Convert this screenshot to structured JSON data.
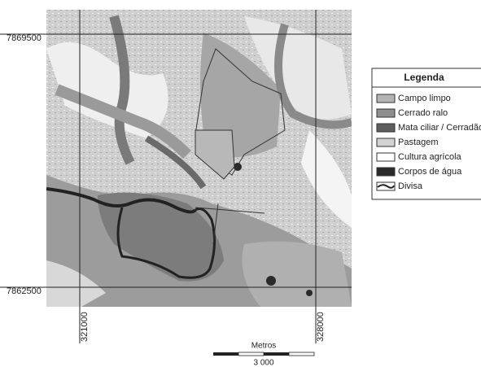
{
  "map": {
    "northings": [
      "7869500",
      "7862500"
    ],
    "eastings": [
      "321000",
      "328000"
    ],
    "legend": {
      "title": "Legenda",
      "items": [
        {
          "label": "Campo limpo",
          "color": "#b4b4b4"
        },
        {
          "label": "Cerrado ralo",
          "color": "#8e8e8e"
        },
        {
          "label": "Mata ciliar / Cerradão",
          "color": "#5e5e5e"
        },
        {
          "label": "Pastagem",
          "color": "#d2d2d2"
        },
        {
          "label": "Cultura agrícola",
          "color": "#ffffff"
        },
        {
          "label": "Corpos de água",
          "color": "#2a2a2a"
        },
        {
          "label": "Divisa",
          "color": "line"
        }
      ]
    },
    "scale": {
      "unit": "Metros",
      "length": "3 000"
    }
  }
}
